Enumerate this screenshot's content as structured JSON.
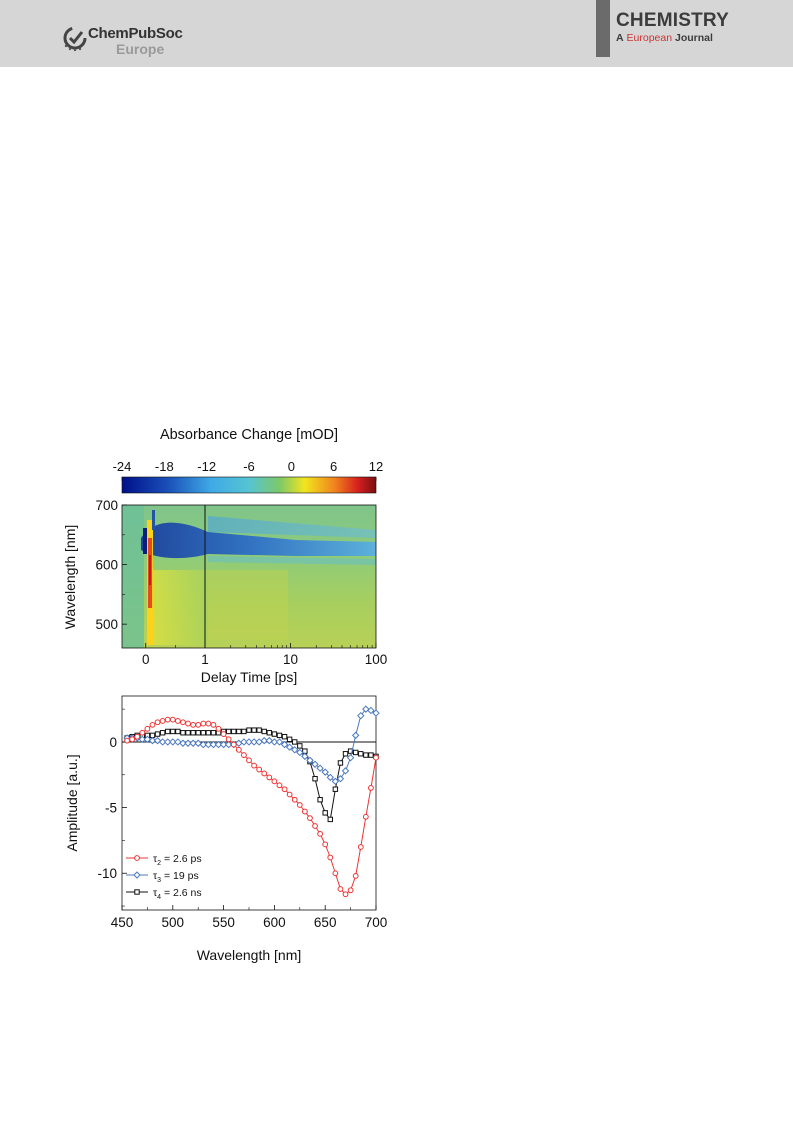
{
  "header": {
    "publisher_name": "ChemPubSoc",
    "publisher_region": "Europe",
    "journal_title": "CHEMISTRY",
    "journal_sub_a": "A",
    "journal_sub_mid": "European",
    "journal_sub_end": "Journal"
  },
  "colors": {
    "header_bg": "#d6d6d6",
    "series_red": "#ee3333",
    "series_blue": "#4a78c0",
    "series_black": "#111111"
  },
  "chart_data": [
    {
      "type": "heatmap",
      "title": "Absorbance Change [mOD]",
      "colorbar": {
        "ticks": [
          "-24",
          "-18",
          "-12",
          "-6",
          "0",
          "6",
          "12"
        ],
        "range": [
          -24,
          12
        ]
      },
      "xlabel": "Delay Time [ps]",
      "ylabel": "Wavelength [nm]",
      "x_scale": "linear to 1 ps, logarithmic from 1 to 100 ps",
      "xticks": [
        "0",
        "1",
        "10",
        "100"
      ],
      "yticks": [
        "500",
        "600",
        "700"
      ],
      "ylim": [
        460,
        700
      ],
      "xlim_linear": [
        -0.4,
        1
      ],
      "xlim_log": [
        1,
        100
      ]
    },
    {
      "type": "line",
      "xlabel": "Wavelength [nm]",
      "ylabel": "Amplitude [a.u.]",
      "xlim": [
        450,
        700
      ],
      "ylim": [
        -12.8,
        3.5
      ],
      "xticks": [
        "450",
        "500",
        "550",
        "600",
        "650",
        "700"
      ],
      "yticks": [
        "0",
        "-5",
        "-10"
      ],
      "legend_placement": "bottom-left",
      "series": [
        {
          "name": "τ2 = 2.6 ps",
          "label_main": "τ",
          "label_sub": "2",
          "label_rest": " = 2.6 ps",
          "color": "#ee3333",
          "marker": "circle",
          "x": [
            455,
            460,
            465,
            470,
            475,
            480,
            485,
            490,
            495,
            500,
            505,
            510,
            515,
            520,
            525,
            530,
            535,
            540,
            545,
            550,
            555,
            560,
            565,
            570,
            575,
            580,
            585,
            590,
            595,
            600,
            605,
            610,
            615,
            620,
            625,
            630,
            635,
            640,
            645,
            650,
            655,
            660,
            665,
            670,
            675,
            680,
            685,
            690,
            695,
            700
          ],
          "y": [
            0.1,
            0.2,
            0.4,
            0.7,
            1.0,
            1.3,
            1.5,
            1.6,
            1.7,
            1.7,
            1.6,
            1.5,
            1.4,
            1.3,
            1.3,
            1.4,
            1.4,
            1.3,
            1.0,
            0.6,
            0.2,
            -0.2,
            -0.6,
            -1.0,
            -1.4,
            -1.8,
            -2.1,
            -2.4,
            -2.7,
            -3.0,
            -3.3,
            -3.6,
            -4.0,
            -4.4,
            -4.8,
            -5.3,
            -5.8,
            -6.4,
            -7.0,
            -7.8,
            -8.8,
            -10.0,
            -11.2,
            -11.6,
            -11.3,
            -10.2,
            -8.0,
            -5.7,
            -3.5,
            -1.2
          ]
        },
        {
          "name": "τ3 = 19 ps",
          "label_main": "τ",
          "label_sub": "3",
          "label_rest": " = 19 ps",
          "color": "#4a78c0",
          "marker": "diamond",
          "x": [
            455,
            460,
            465,
            470,
            475,
            480,
            485,
            490,
            495,
            500,
            505,
            510,
            515,
            520,
            525,
            530,
            535,
            540,
            545,
            550,
            555,
            560,
            565,
            570,
            575,
            580,
            585,
            590,
            595,
            600,
            605,
            610,
            615,
            620,
            625,
            630,
            635,
            640,
            645,
            650,
            655,
            660,
            665,
            670,
            675,
            680,
            685,
            690,
            695,
            700
          ],
          "y": [
            0.3,
            0.3,
            0.3,
            0.2,
            0.2,
            0.1,
            0.1,
            0.0,
            0.0,
            0.0,
            0.0,
            -0.1,
            -0.1,
            -0.1,
            -0.1,
            -0.2,
            -0.2,
            -0.2,
            -0.2,
            -0.2,
            -0.2,
            -0.2,
            -0.1,
            0.0,
            0.0,
            0.0,
            0.0,
            0.1,
            0.1,
            0.0,
            0.0,
            -0.2,
            -0.4,
            -0.6,
            -0.8,
            -1.1,
            -1.4,
            -1.7,
            -2.0,
            -2.3,
            -2.7,
            -3.0,
            -2.8,
            -2.2,
            -1.2,
            0.5,
            2.0,
            2.5,
            2.4,
            2.2
          ]
        },
        {
          "name": "τ4 = 2.6 ns",
          "label_main": "τ",
          "label_sub": "4",
          "label_rest": " = 2.6 ns",
          "color": "#111111",
          "marker": "square",
          "x": [
            455,
            460,
            465,
            470,
            475,
            480,
            485,
            490,
            495,
            500,
            505,
            510,
            515,
            520,
            525,
            530,
            535,
            540,
            545,
            550,
            555,
            560,
            565,
            570,
            575,
            580,
            585,
            590,
            595,
            600,
            605,
            610,
            615,
            620,
            625,
            630,
            635,
            640,
            645,
            650,
            655,
            660,
            665,
            670,
            675,
            680,
            685,
            690,
            695,
            700
          ],
          "y": [
            0.3,
            0.4,
            0.5,
            0.5,
            0.5,
            0.5,
            0.6,
            0.7,
            0.8,
            0.8,
            0.8,
            0.7,
            0.7,
            0.7,
            0.7,
            0.7,
            0.7,
            0.7,
            0.7,
            0.8,
            0.8,
            0.8,
            0.8,
            0.8,
            0.9,
            0.9,
            0.9,
            0.8,
            0.7,
            0.6,
            0.5,
            0.4,
            0.2,
            0.0,
            -0.3,
            -0.7,
            -1.5,
            -2.8,
            -4.4,
            -5.4,
            -5.9,
            -3.6,
            -1.6,
            -0.9,
            -0.7,
            -0.8,
            -0.9,
            -1.0,
            -1.0,
            -1.1
          ]
        }
      ]
    }
  ]
}
